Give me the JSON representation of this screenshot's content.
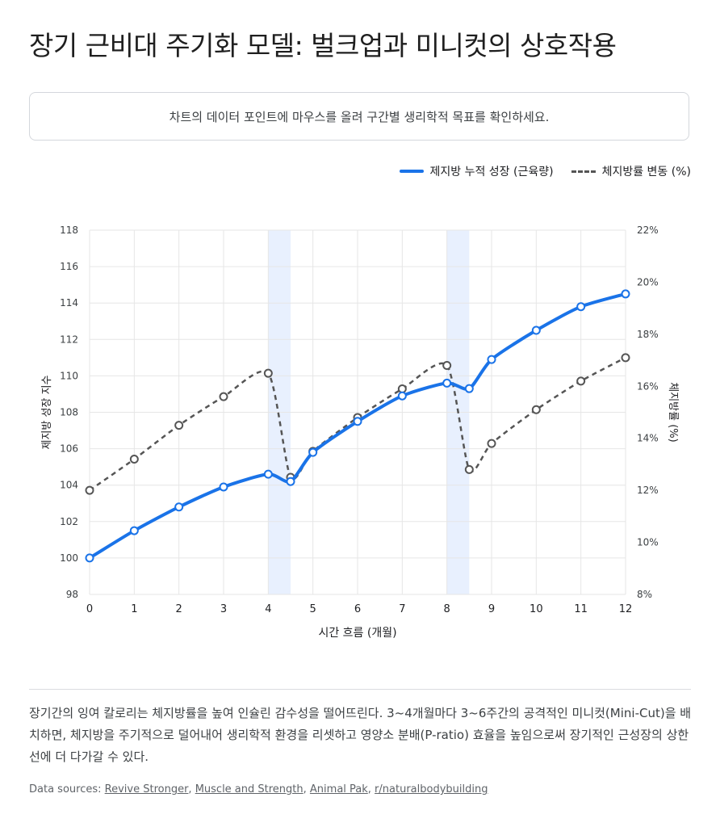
{
  "page": {
    "title": "장기 근비대 주기화 모델: 벌크업과 미니컷의 상호작용",
    "hint": "차트의 데이터 포인트에 마우스를 올려 구간별 생리학적 목표를 확인하세요.",
    "description": "장기간의 잉여 칼로리는 체지방률을 높여 인슐린 감수성을 떨어뜨린다. 3~4개월마다 3~6주간의 공격적인 미니컷(Mini-Cut)을 배치하면, 체지방을 주기적으로 덜어내어 생리학적 환경을 리셋하고 영양소 분배(P-ratio) 효율을 높임으로써 장기적인 근성장의 상한선에 더 다가갈 수 있다.",
    "sources_label": "Data sources:",
    "sources": [
      "Revive Stronger",
      "Muscle and Strength",
      "Animal Pak",
      "r/naturalbodybuilding"
    ]
  },
  "colors": {
    "primary": "#1a73e8",
    "secondary": "#555555",
    "band": "#e8f0fe",
    "grid": "#e6e6e6"
  },
  "chart_data": {
    "type": "line",
    "xlabel": "시간 흐름 (개월)",
    "ylabel_left": "제지방 성장 지수",
    "ylabel_right": "체지방률 (%)",
    "xlim": [
      0,
      12
    ],
    "ylim_left": [
      98,
      118
    ],
    "ylim_right": [
      8,
      22
    ],
    "x_ticks": [
      "0",
      "1",
      "2",
      "3",
      "4",
      "5",
      "6",
      "7",
      "8",
      "9",
      "10",
      "11",
      "12"
    ],
    "y_ticks_left": [
      "98",
      "100",
      "102",
      "104",
      "106",
      "108",
      "110",
      "112",
      "114",
      "116",
      "118"
    ],
    "y_ticks_right": [
      "8%",
      "10%",
      "12%",
      "14%",
      "16%",
      "18%",
      "20%",
      "22%"
    ],
    "grid": true,
    "legend_position": "top-right",
    "shaded_ranges": [
      [
        4,
        4.5
      ],
      [
        8,
        8.5
      ]
    ],
    "series": [
      {
        "name": "제지방 누적 성장 (근육량)",
        "axis": "left",
        "style": "solid",
        "x": [
          0,
          1,
          2,
          3,
          4,
          4.5,
          5,
          6,
          7,
          8,
          8.5,
          9,
          10,
          11,
          12
        ],
        "y": [
          100,
          101.5,
          102.8,
          103.9,
          104.6,
          104.2,
          105.8,
          107.5,
          108.9,
          109.6,
          109.3,
          110.9,
          112.5,
          113.8,
          114.5
        ]
      },
      {
        "name": "체지방률 변동 (%)",
        "axis": "right",
        "style": "dashed",
        "x": [
          0,
          1,
          2,
          3,
          4,
          4.5,
          5,
          6,
          7,
          8,
          8.5,
          9,
          10,
          11,
          12
        ],
        "y": [
          12.0,
          13.2,
          14.5,
          15.6,
          16.5,
          12.5,
          13.5,
          14.8,
          15.9,
          16.8,
          12.8,
          13.8,
          15.1,
          16.2,
          17.1
        ]
      }
    ]
  }
}
